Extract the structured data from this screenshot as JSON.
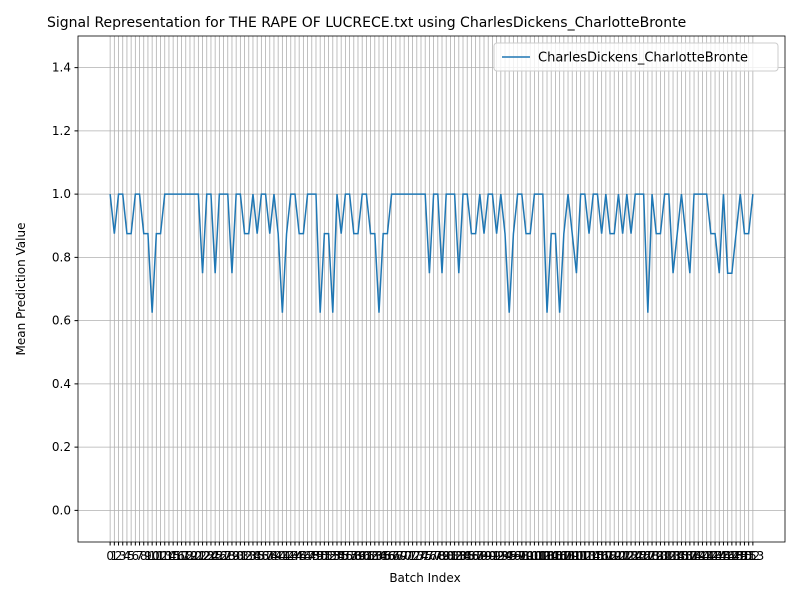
{
  "chart_data": {
    "type": "line",
    "title": "Signal Representation for THE RAPE OF LUCRECE.txt using CharlesDickens_CharlotteBronte",
    "x_label": "Batch Index",
    "y_label": "Mean Prediction Value",
    "x": [
      0,
      1,
      2,
      3,
      4,
      5,
      6,
      7,
      8,
      9,
      10,
      11,
      12,
      13,
      14,
      15,
      16,
      17,
      18,
      19,
      20,
      21,
      22,
      23,
      24,
      25,
      26,
      27,
      28,
      29,
      30,
      31,
      32,
      33,
      34,
      35,
      36,
      37,
      38,
      39,
      40,
      41,
      42,
      43,
      44,
      45,
      46,
      47,
      48,
      49,
      50,
      51,
      52,
      53,
      54,
      55,
      56,
      57,
      58,
      59,
      60,
      61,
      62,
      63,
      64,
      65,
      66,
      67,
      68,
      69,
      70,
      71,
      72,
      73,
      74,
      75,
      76,
      77,
      78,
      79,
      80,
      81,
      82,
      83,
      84,
      85,
      86,
      87,
      88,
      89,
      90,
      91,
      92,
      93,
      94,
      95,
      96,
      97,
      98,
      99,
      100,
      101,
      102,
      103,
      104,
      105,
      106,
      107,
      108,
      109,
      110,
      111,
      112,
      113,
      114,
      115,
      116,
      117,
      118,
      119,
      120,
      121,
      122,
      123,
      124,
      125,
      126,
      127,
      128,
      129,
      130,
      131,
      132,
      133,
      134,
      135,
      136,
      137,
      138,
      139,
      140,
      141,
      142,
      143,
      144,
      145,
      146,
      147,
      148,
      149,
      150,
      151,
      152,
      153
    ],
    "series": [
      {
        "name": "CharlesDickens_CharlotteBronte",
        "color": "#1f77b4",
        "values": [
          1,
          0.875,
          1,
          1,
          0.875,
          0.875,
          1,
          1,
          0.875,
          0.875,
          0.625,
          0.875,
          0.875,
          1,
          1,
          1,
          1,
          1,
          1,
          1,
          1,
          1,
          0.75,
          1,
          1,
          0.75,
          1,
          1,
          1,
          0.75,
          1,
          1,
          0.875,
          0.875,
          1,
          0.875,
          1,
          1,
          0.875,
          1,
          0.875,
          0.625,
          0.875,
          1,
          1,
          0.875,
          0.875,
          1,
          1,
          1,
          0.625,
          0.875,
          0.875,
          0.625,
          1,
          0.875,
          1,
          1,
          0.875,
          0.875,
          1,
          1,
          0.875,
          0.875,
          0.625,
          0.875,
          0.875,
          1,
          1,
          1,
          1,
          1,
          1,
          1,
          1,
          1,
          0.75,
          1,
          1,
          0.75,
          1,
          1,
          1,
          0.75,
          1,
          1,
          0.875,
          0.875,
          1,
          0.875,
          1,
          1,
          0.875,
          1,
          0.875,
          0.625,
          0.875,
          1,
          1,
          0.875,
          0.875,
          1,
          1,
          1,
          0.625,
          0.875,
          0.875,
          0.625,
          0.875,
          1,
          0.875,
          0.75,
          1,
          1,
          0.875,
          1,
          1,
          0.875,
          1,
          0.875,
          0.875,
          1,
          0.875,
          1,
          0.875,
          1,
          1,
          1,
          0.625,
          1,
          0.875,
          0.875,
          1,
          1,
          0.75,
          0.875,
          1,
          0.875,
          0.75,
          1,
          1,
          1,
          1,
          0.875,
          0.875,
          0.75,
          1,
          0.75,
          0.75,
          0.875,
          1,
          0.875,
          0.875,
          1
        ]
      }
    ],
    "xlim": [
      -7.65,
      160.65
    ],
    "xticks": [
      0,
      1,
      2,
      3,
      4,
      5,
      6,
      7,
      8,
      9,
      10,
      11,
      12,
      13,
      14,
      15,
      16,
      17,
      18,
      19,
      20,
      21,
      22,
      23,
      24,
      25,
      26,
      27,
      28,
      29,
      30,
      31,
      32,
      33,
      34,
      35,
      36,
      37,
      38,
      39,
      40,
      41,
      42,
      43,
      44,
      45,
      46,
      47,
      48,
      49,
      50,
      51,
      52,
      53,
      54,
      55,
      56,
      57,
      58,
      59,
      60,
      61,
      62,
      63,
      64,
      65,
      66,
      67,
      68,
      69,
      70,
      71,
      72,
      73,
      74,
      75,
      76,
      77,
      78,
      79,
      80,
      81,
      82,
      83,
      84,
      85,
      86,
      87,
      88,
      89,
      90,
      91,
      92,
      93,
      94,
      95,
      96,
      97,
      98,
      99,
      100,
      101,
      102,
      103,
      104,
      105,
      106,
      107,
      108,
      109,
      110,
      111,
      112,
      113,
      114,
      115,
      116,
      117,
      118,
      119,
      120,
      121,
      122,
      123,
      124,
      125,
      126,
      127,
      128,
      129,
      130,
      131,
      132,
      133,
      134,
      135,
      136,
      137,
      138,
      139,
      140,
      141,
      142,
      143,
      144,
      145,
      146,
      147,
      148,
      149,
      150,
      151,
      152,
      153
    ],
    "ylim": [
      -0.1,
      1.5
    ],
    "yticks": [
      {
        "value": 0,
        "label": "0.0"
      },
      {
        "value": 0.2,
        "label": "0.2"
      },
      {
        "value": 0.4,
        "label": "0.4"
      },
      {
        "value": 0.6,
        "label": "0.6"
      },
      {
        "value": 0.8,
        "label": "0.8"
      },
      {
        "value": 1.0,
        "label": "1.0"
      },
      {
        "value": 1.2,
        "label": "1.2"
      },
      {
        "value": 1.4,
        "label": "1.4"
      }
    ],
    "grid": true,
    "legend": "upper right"
  }
}
